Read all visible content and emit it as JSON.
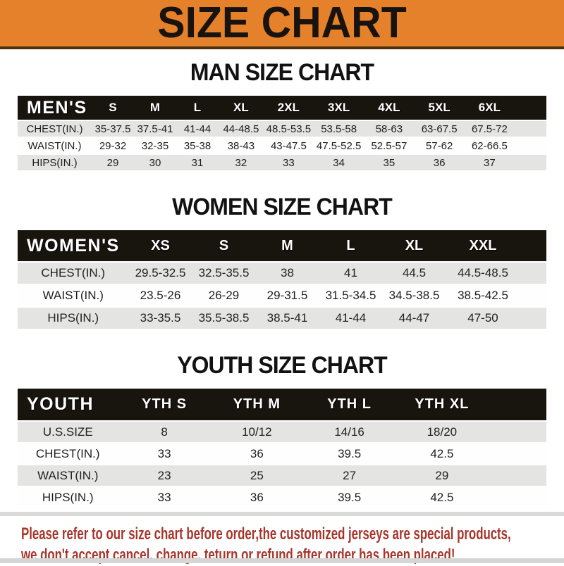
{
  "banner": {
    "title": "SIZE CHART",
    "bg_color": "#E5812B"
  },
  "sections": [
    {
      "heading": "MAN SIZE CHART",
      "table": {
        "corner_label": "MEN'S",
        "columns": [
          "S",
          "M",
          "L",
          "XL",
          "2XL",
          "3XL",
          "4XL",
          "5XL",
          "6XL"
        ],
        "rows": [
          {
            "label": "CHEST(IN.)",
            "values": [
              "35-37.5",
              "37.5-41",
              "41-44",
              "44-48.5",
              "48.5-53.5",
              "53.5-58",
              "58-63",
              "63-67.5",
              "67.5-72"
            ]
          },
          {
            "label": "WAIST(IN.)",
            "values": [
              "29-32",
              "32-35",
              "35-38",
              "38-43",
              "43-47.5",
              "47.5-52.5",
              "52.5-57",
              "57-62",
              "62-66.5"
            ]
          },
          {
            "label": "HIPS(IN.)",
            "values": [
              "29",
              "30",
              "31",
              "32",
              "33",
              "34",
              "35",
              "36",
              "37"
            ]
          }
        ]
      }
    },
    {
      "heading": "WOMEN SIZE CHART",
      "table": {
        "corner_label": "WOMEN'S",
        "columns": [
          "XS",
          "S",
          "M",
          "L",
          "XL",
          "XXL"
        ],
        "rows": [
          {
            "label": "CHEST(IN.)",
            "values": [
              "29.5-32.5",
              "32.5-35.5",
              "38",
              "41",
              "44.5",
              "44.5-48.5"
            ]
          },
          {
            "label": "WAIST(IN.)",
            "values": [
              "23.5-26",
              "26-29",
              "29-31.5",
              "31.5-34.5",
              "34.5-38.5",
              "38.5-42.5"
            ]
          },
          {
            "label": "HIPS(IN.)",
            "values": [
              "33-35.5",
              "35.5-38.5",
              "38.5-41",
              "41-44",
              "44-47",
              "47-50"
            ]
          }
        ]
      }
    },
    {
      "heading": "YOUTH SIZE CHART",
      "table": {
        "corner_label": "YOUTH",
        "columns": [
          "YTH S",
          "YTH M",
          "YTH L",
          "YTH XL"
        ],
        "rows": [
          {
            "label": "U.S.SIZE",
            "values": [
              "8",
              "10/12",
              "14/16",
              "18/20"
            ]
          },
          {
            "label": "CHEST(IN.)",
            "values": [
              "33",
              "36",
              "39.5",
              "42.5"
            ]
          },
          {
            "label": "WAIST(IN.)",
            "values": [
              "23",
              "25",
              "27",
              "29"
            ]
          },
          {
            "label": "HIPS(IN.)",
            "values": [
              "33",
              "36",
              "39.5",
              "42.5"
            ]
          }
        ]
      }
    }
  ],
  "footer": {
    "line1": "Please refer to our size chart before order,the customized jerseys are special products,",
    "line2": "we don't accept cancel, change, teturn or refund after order has been placed!",
    "text_color": "#A6362C"
  }
}
